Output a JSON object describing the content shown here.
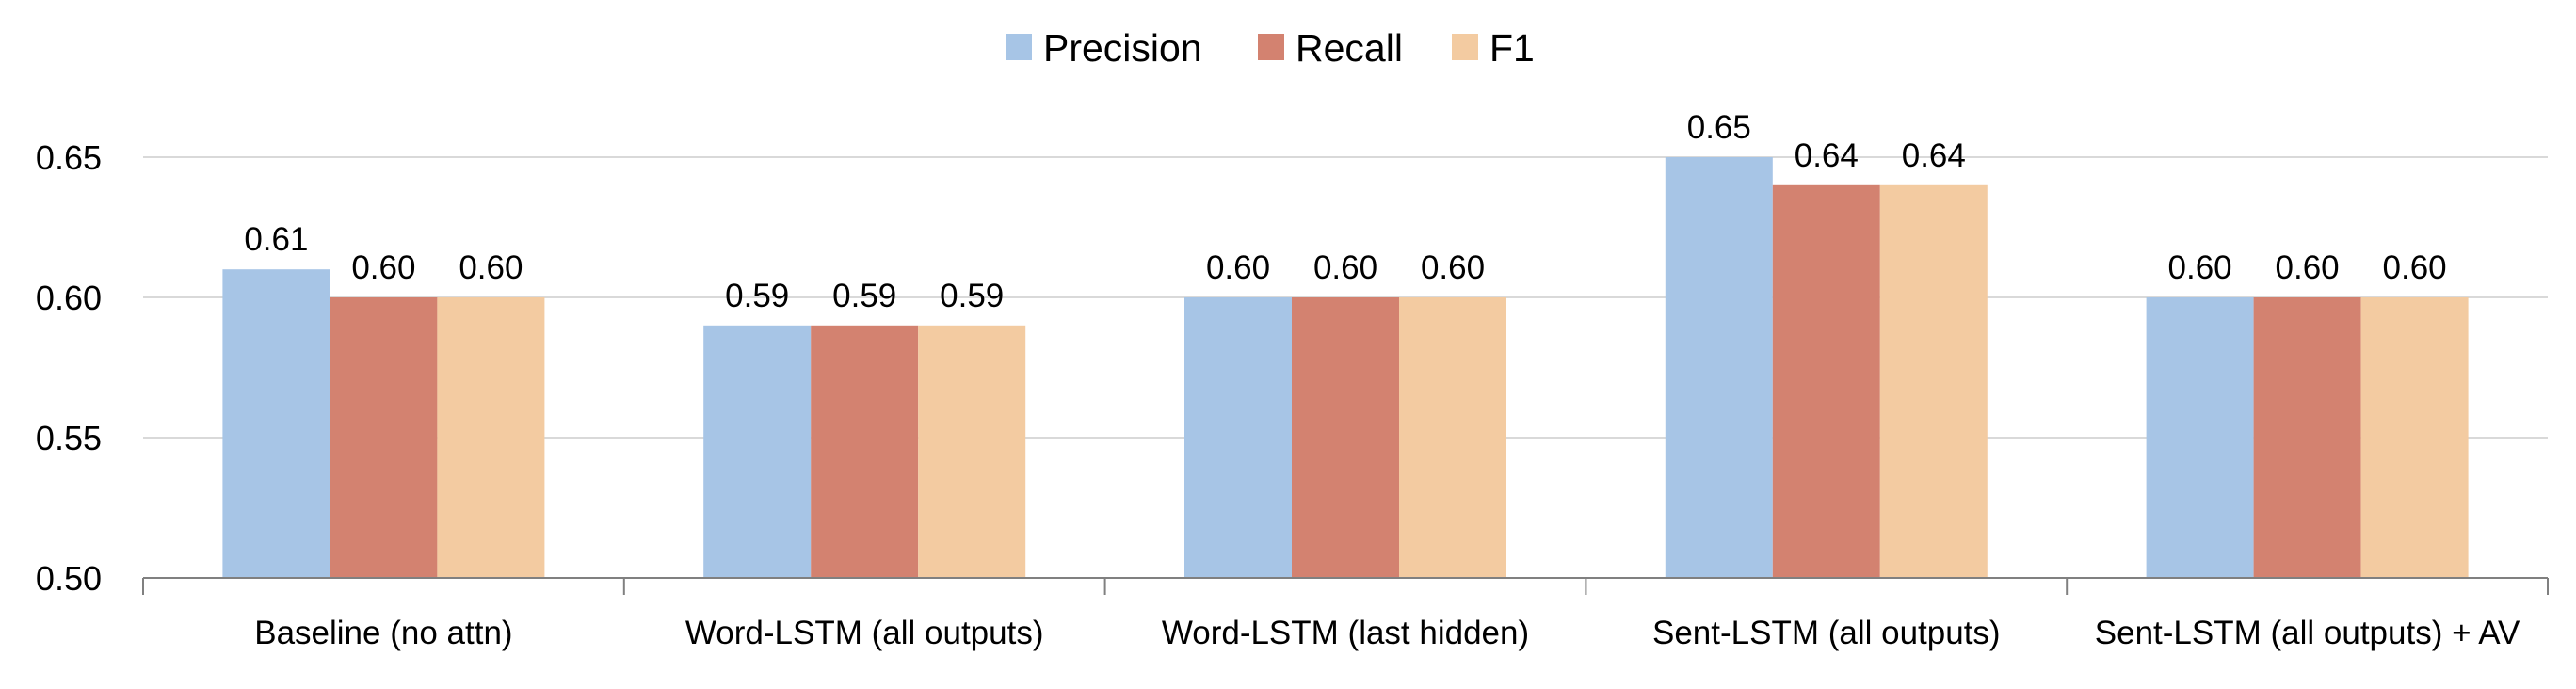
{
  "chart_data": {
    "type": "bar",
    "categories": [
      "Baseline (no attn)",
      "Word-LSTM (all outputs)",
      "Word-LSTM (last hidden)",
      "Sent-LSTM (all outputs)",
      "Sent-LSTM (all outputs) + AV"
    ],
    "series": [
      {
        "name": "Precision",
        "color": "#A7C5E6",
        "values": [
          0.61,
          0.59,
          0.6,
          0.65,
          0.6
        ],
        "labels": [
          "0.61",
          "0.59",
          "0.60",
          "0.65",
          "0.60"
        ]
      },
      {
        "name": "Recall",
        "color": "#D38270",
        "values": [
          0.6,
          0.59,
          0.6,
          0.64,
          0.6
        ],
        "labels": [
          "0.60",
          "0.59",
          "0.60",
          "0.64",
          "0.60"
        ]
      },
      {
        "name": "F1",
        "color": "#F3CBA1",
        "values": [
          0.6,
          0.59,
          0.6,
          0.64,
          0.6
        ],
        "labels": [
          "0.60",
          "0.59",
          "0.60",
          "0.64",
          "0.60"
        ]
      }
    ],
    "ylim": [
      0.5,
      0.65
    ],
    "yticks": [
      0.5,
      0.55,
      0.6,
      0.65
    ],
    "ytick_labels": [
      "0.50",
      "0.55",
      "0.60",
      "0.65"
    ],
    "grid": true,
    "legend_position": "top-center",
    "title": "",
    "xlabel": "",
    "ylabel": ""
  }
}
